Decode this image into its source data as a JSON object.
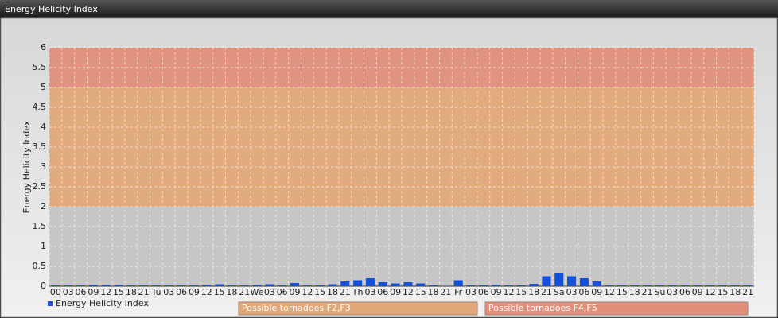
{
  "chart_data": {
    "type": "bar",
    "title": "Energy Helicity Index",
    "y_label": "Energy Helicity Index",
    "categories": [
      "00",
      "03",
      "06",
      "09",
      "12",
      "15",
      "18",
      "21",
      "Tu",
      "03",
      "06",
      "09",
      "12",
      "15",
      "18",
      "21",
      "We",
      "03",
      "06",
      "09",
      "12",
      "15",
      "18",
      "21",
      "Th",
      "03",
      "06",
      "09",
      "12",
      "15",
      "18",
      "21",
      "Fr",
      "03",
      "06",
      "09",
      "12",
      "15",
      "18",
      "21",
      "Sa",
      "03",
      "06",
      "09",
      "12",
      "15",
      "18",
      "21",
      "Su",
      "03",
      "06",
      "09",
      "12",
      "15",
      "18",
      "21"
    ],
    "series": [
      {
        "name": "Energy Helicity Index",
        "color": "#1450dc",
        "values": [
          0.02,
          0.02,
          0.02,
          0.03,
          0.03,
          0.03,
          0.02,
          0.02,
          0.02,
          0.02,
          0.02,
          0.02,
          0.03,
          0.05,
          0.02,
          0.02,
          0.03,
          0.05,
          0.02,
          0.08,
          0.02,
          0.02,
          0.05,
          0.12,
          0.15,
          0.2,
          0.1,
          0.07,
          0.1,
          0.07,
          0.02,
          0.01,
          0.15,
          0.02,
          0.02,
          0.03,
          0.02,
          0.02,
          0.06,
          0.25,
          0.32,
          0.25,
          0.2,
          0.12,
          0.02,
          0.02,
          0.02,
          0.02,
          0.02,
          0.02,
          0.02,
          0.02,
          0.02,
          0.02,
          0.02,
          0.02
        ]
      }
    ],
    "bands": [
      {
        "from": 0,
        "to": 2,
        "color": "#c4c4c4"
      },
      {
        "from": 2,
        "to": 5,
        "color": "#e0a878",
        "label": "Possible tornadoes F2,F3"
      },
      {
        "from": 5,
        "to": 6,
        "color": "#e0907a",
        "label": "Possible tornadoes F4,F5"
      }
    ],
    "ylim": [
      0,
      6
    ],
    "yticks": [
      0,
      0.5,
      1,
      1.5,
      2,
      2.5,
      3,
      3.5,
      4,
      4.5,
      5,
      5.5,
      6
    ],
    "grid": true
  }
}
